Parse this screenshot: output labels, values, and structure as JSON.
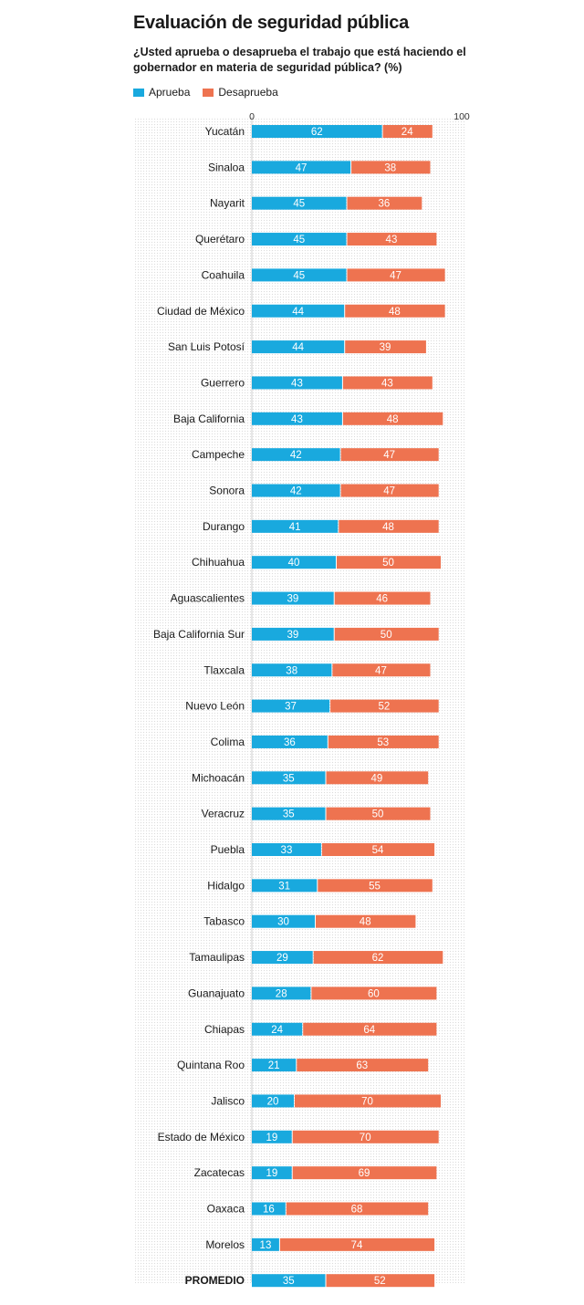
{
  "chart_data": {
    "type": "bar",
    "stacked": true,
    "orientation": "horizontal",
    "title": "Evaluación de seguridad pública",
    "subtitle": "¿Usted aprueba o desaprueba el trabajo que está haciendo el gobernador en materia de seguridad pública? (%)",
    "xlim": [
      0,
      100
    ],
    "xticks": [
      "0",
      "100"
    ],
    "legend": "top-left",
    "categories": [
      "Yucatán",
      "Sinaloa",
      "Nayarit",
      "Querétaro",
      "Coahuila",
      "Ciudad de México",
      "San Luis Potosí",
      "Guerrero",
      "Baja California",
      "Campeche",
      "Sonora",
      "Durango",
      "Chihuahua",
      "Aguascalientes",
      "Baja California Sur",
      "Tlaxcala",
      "Nuevo León",
      "Colima",
      "Michoacán",
      "Veracruz",
      "Puebla",
      "Hidalgo",
      "Tabasco",
      "Tamaulipas",
      "Guanajuato",
      "Chiapas",
      "Quintana Roo",
      "Jalisco",
      "Estado de México",
      "Zacatecas",
      "Oaxaca",
      "Morelos",
      "PROMEDIO"
    ],
    "series": [
      {
        "name": "Aprueba",
        "color": "#19a9de",
        "values": [
          62,
          47,
          45,
          45,
          45,
          44,
          44,
          43,
          43,
          42,
          42,
          41,
          40,
          39,
          39,
          38,
          37,
          36,
          35,
          35,
          33,
          31,
          30,
          29,
          28,
          24,
          21,
          20,
          19,
          19,
          16,
          13,
          35
        ]
      },
      {
        "name": "Desaprueba",
        "color": "#ee7350",
        "values": [
          24,
          38,
          36,
          43,
          47,
          48,
          39,
          43,
          48,
          47,
          47,
          48,
          50,
          46,
          50,
          47,
          52,
          53,
          49,
          50,
          54,
          55,
          48,
          62,
          60,
          64,
          63,
          70,
          70,
          69,
          68,
          74,
          52
        ]
      }
    ]
  }
}
